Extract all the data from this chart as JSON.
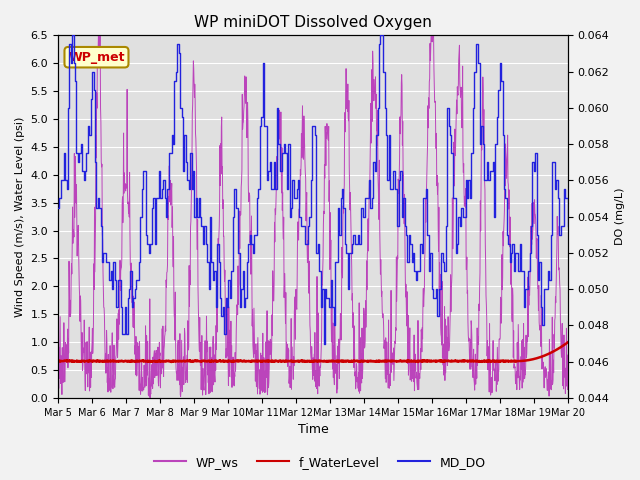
{
  "title": "WP miniDOT Dissolved Oxygen",
  "xlabel": "Time",
  "ylabel_left": "Wind Speed (m/s), Water Level (psi)",
  "ylabel_right": "DO (mg/L)",
  "ylim_left": [
    0.0,
    6.5
  ],
  "ylim_right": [
    0.044,
    0.064
  ],
  "yticks_left": [
    0.0,
    0.5,
    1.0,
    1.5,
    2.0,
    2.5,
    3.0,
    3.5,
    4.0,
    4.5,
    5.0,
    5.5,
    6.0,
    6.5
  ],
  "yticks_right": [
    0.044,
    0.046,
    0.048,
    0.05,
    0.052,
    0.054,
    0.056,
    0.058,
    0.06,
    0.062,
    0.064
  ],
  "xtick_labels": [
    "Mar 5",
    "Mar 6",
    "Mar 7",
    "Mar 8",
    "Mar 9",
    "Mar 10",
    "Mar 11",
    "Mar 12",
    "Mar 13",
    "Mar 14",
    "Mar 15",
    "Mar 16",
    "Mar 17",
    "Mar 18",
    "Mar 19",
    "Mar 20"
  ],
  "color_ws": "#BB44BB",
  "color_wl": "#CC0000",
  "color_do": "#2222DD",
  "legend_labels": [
    "WP_ws",
    "f_WaterLevel",
    "MD_DO"
  ],
  "legend_colors": [
    "#BB44BB",
    "#CC0000",
    "#2222DD"
  ],
  "wp_met_label": "WP_met",
  "wp_met_box_color": "#FFFFCC",
  "wp_met_text_color": "#CC0000",
  "wp_met_border_color": "#AA8800",
  "plot_bg_color": "#E0E0E0",
  "fig_bg_color": "#F2F2F2",
  "grid_color": "#FFFFFF"
}
